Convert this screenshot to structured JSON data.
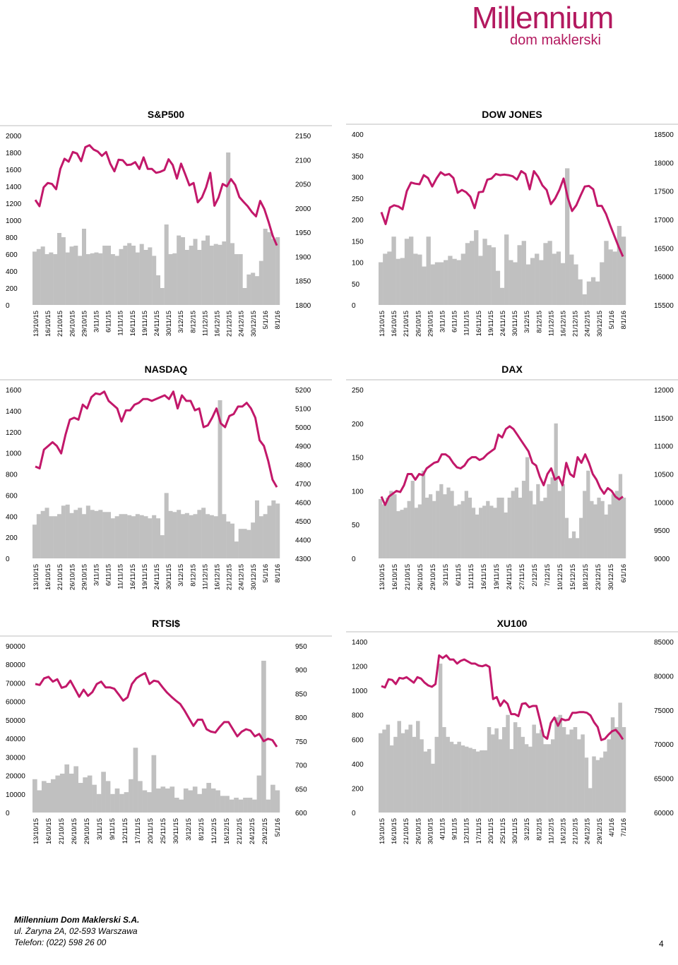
{
  "brand": {
    "name": "Millennium",
    "sub": "dom maklerski",
    "color": "#b3195f"
  },
  "colors": {
    "line": "#c2186a",
    "bar": "#c0c0c0",
    "grid": "#cfcfcf"
  },
  "charts": [
    {
      "id": "sp500",
      "title": "S&P500",
      "left_axis": {
        "ticks": [
          "2000",
          "1800",
          "1600",
          "1400",
          "1200",
          "1000",
          "800",
          "600",
          "400",
          "200",
          "0"
        ],
        "min": 0,
        "max": 2000
      },
      "right_axis": {
        "ticks": [
          "2150",
          "2100",
          "2050",
          "2000",
          "1950",
          "1900",
          "1850",
          "1800"
        ],
        "min": 1800,
        "max": 2150
      },
      "x_labels": [
        "13/10/15",
        "16/10/15",
        "21/10/15",
        "26/10/15",
        "29/10/15",
        "3/11/15",
        "6/11/15",
        "11/11/15",
        "16/11/15",
        "19/11/15",
        "24/11/15",
        "30/11/15",
        "3/12/15",
        "8/12/15",
        "11/12/15",
        "16/12/15",
        "21/12/15",
        "24/12/15",
        "30/12/15",
        "5/1/16",
        "8/1/16"
      ],
      "chart_data": {
        "type": "bar+line",
        "volume_axis": "left",
        "price_axis": "right",
        "bars": [
          630,
          660,
          690,
          600,
          620,
          600,
          850,
          800,
          620,
          690,
          700,
          580,
          900,
          600,
          610,
          620,
          610,
          700,
          700,
          600,
          580,
          660,
          700,
          730,
          700,
          620,
          720,
          650,
          680,
          580,
          350,
          200,
          950,
          600,
          610,
          820,
          800,
          650,
          700,
          780,
          650,
          760,
          820,
          700,
          720,
          710,
          750,
          1800,
          730,
          600,
          600,
          200,
          360,
          380,
          340,
          520,
          900,
          860,
          780,
          800
        ],
        "line": [
          2017,
          2004,
          2043,
          2052,
          2050,
          2039,
          2081,
          2102,
          2096,
          2116,
          2113,
          2097,
          2126,
          2130,
          2121,
          2117,
          2108,
          2116,
          2092,
          2076,
          2100,
          2099,
          2089,
          2090,
          2095,
          2081,
          2105,
          2081,
          2081,
          2073,
          2075,
          2079,
          2101,
          2089,
          2061,
          2092,
          2070,
          2047,
          2052,
          2012,
          2022,
          2043,
          2073,
          2005,
          2022,
          2050,
          2045,
          2060,
          2048,
          2023,
          2013,
          2004,
          1992,
          1983,
          2015,
          1998,
          1972,
          1943,
          1923
        ]
      }
    },
    {
      "id": "dowjones",
      "title": "DOW JONES",
      "left_axis": {
        "ticks": [
          "400",
          "350",
          "300",
          "250",
          "200",
          "150",
          "100",
          "50",
          "0"
        ],
        "min": 0,
        "max": 400
      },
      "right_axis": {
        "ticks": [
          "18500",
          "18000",
          "17500",
          "17000",
          "16500",
          "16000",
          "15500"
        ],
        "min": 15500,
        "max": 18500
      },
      "x_labels": [
        "13/10/15",
        "16/10/15",
        "21/10/15",
        "26/10/15",
        "29/10/15",
        "3/11/15",
        "6/11/15",
        "11/11/15",
        "16/11/15",
        "19/11/15",
        "24/11/15",
        "30/11/15",
        "3/12/15",
        "8/12/15",
        "11/12/15",
        "16/12/15",
        "21/12/15",
        "24/12/15",
        "30/12/15",
        "5/1/16",
        "8/1/16"
      ],
      "chart_data": {
        "type": "bar+line",
        "volume_axis": "left",
        "price_axis": "right",
        "bars": [
          100,
          120,
          125,
          160,
          108,
          110,
          155,
          160,
          120,
          118,
          90,
          160,
          95,
          100,
          100,
          105,
          115,
          108,
          105,
          120,
          145,
          150,
          175,
          115,
          155,
          140,
          135,
          80,
          40,
          165,
          105,
          100,
          140,
          150,
          95,
          110,
          120,
          105,
          145,
          150,
          120,
          125,
          98,
          320,
          118,
          95,
          60,
          25,
          55,
          65,
          55,
          100,
          150,
          130,
          125,
          185,
          160
        ],
        "line": [
          17130,
          16920,
          17210,
          17250,
          17230,
          17180,
          17500,
          17650,
          17630,
          17620,
          17780,
          17730,
          17580,
          17720,
          17830,
          17780,
          17800,
          17730,
          17470,
          17520,
          17480,
          17400,
          17200,
          17480,
          17490,
          17700,
          17720,
          17800,
          17780,
          17790,
          17780,
          17760,
          17700,
          17850,
          17800,
          17530,
          17850,
          17750,
          17600,
          17520,
          17270,
          17370,
          17520,
          17720,
          17380,
          17150,
          17250,
          17420,
          17580,
          17590,
          17530,
          17240,
          17240,
          17100,
          16900,
          16710,
          16520,
          16350
        ]
      }
    },
    {
      "id": "nasdaq",
      "title": "NASDAQ",
      "left_axis": {
        "ticks": [
          "1600",
          "1400",
          "1200",
          "1000",
          "800",
          "600",
          "400",
          "200",
          "0"
        ],
        "min": 0,
        "max": 1600
      },
      "right_axis": {
        "ticks": [
          "5200",
          "5100",
          "5000",
          "4900",
          "4800",
          "4700",
          "4600",
          "4500",
          "4400",
          "4300"
        ],
        "min": 4300,
        "max": 5200
      },
      "x_labels": [
        "13/10/15",
        "16/10/15",
        "21/10/15",
        "26/10/15",
        "29/10/15",
        "3/11/15",
        "6/11/15",
        "11/11/15",
        "16/11/15",
        "19/11/15",
        "24/11/15",
        "30/11/15",
        "3/12/15",
        "8/12/15",
        "11/12/15",
        "16/12/15",
        "21/12/15",
        "24/12/15",
        "30/12/15",
        "5/1/16",
        "8/1/16"
      ],
      "chart_data": {
        "type": "bar+line",
        "volume_axis": "left",
        "price_axis": "right",
        "bars": [
          320,
          420,
          450,
          480,
          400,
          400,
          420,
          500,
          510,
          430,
          460,
          480,
          420,
          500,
          460,
          450,
          460,
          440,
          440,
          380,
          400,
          420,
          420,
          410,
          400,
          420,
          410,
          400,
          380,
          410,
          380,
          220,
          620,
          450,
          440,
          460,
          420,
          430,
          410,
          420,
          460,
          480,
          420,
          410,
          400,
          1500,
          420,
          350,
          330,
          160,
          280,
          280,
          270,
          340,
          550,
          400,
          420,
          500,
          550,
          520
        ],
        "line": [
          4790,
          4780,
          4880,
          4900,
          4920,
          4900,
          4860,
          4960,
          5040,
          5050,
          5040,
          5120,
          5100,
          5160,
          5180,
          5175,
          5190,
          5140,
          5120,
          5100,
          5030,
          5090,
          5090,
          5120,
          5130,
          5150,
          5150,
          5140,
          5150,
          5160,
          5170,
          5150,
          5190,
          5100,
          5170,
          5140,
          5140,
          5090,
          5100,
          5000,
          5010,
          5050,
          5100,
          5020,
          5000,
          5060,
          5070,
          5110,
          5110,
          5130,
          5100,
          5050,
          4930,
          4900,
          4820,
          4720,
          4680
        ]
      }
    },
    {
      "id": "dax",
      "title": "DAX",
      "left_axis": {
        "ticks": [
          "250",
          "200",
          "150",
          "100",
          "50",
          "0"
        ],
        "min": 0,
        "max": 250
      },
      "right_axis": {
        "ticks": [
          "12000",
          "11500",
          "11000",
          "10500",
          "10000",
          "9500",
          "9000"
        ],
        "min": 9000,
        "max": 12000
      },
      "x_labels": [
        "13/10/15",
        "16/10/15",
        "21/10/15",
        "26/10/15",
        "29/10/15",
        "3/11/15",
        "6/11/15",
        "11/11/15",
        "16/11/15",
        "19/11/15",
        "24/11/15",
        "27/11/15",
        "2/12/15",
        "7/12/15",
        "10/12/15",
        "15/12/15",
        "18/12/15",
        "23/12/15",
        "30/12/15",
        "6/1/16"
      ],
      "chart_data": {
        "type": "bar+line",
        "volume_axis": "left",
        "price_axis": "right",
        "bars": [
          88,
          80,
          90,
          100,
          95,
          70,
          72,
          75,
          85,
          115,
          75,
          80,
          130,
          90,
          95,
          85,
          100,
          110,
          95,
          105,
          100,
          78,
          80,
          85,
          100,
          90,
          75,
          65,
          75,
          78,
          85,
          78,
          75,
          90,
          90,
          68,
          90,
          100,
          105,
          90,
          115,
          150,
          100,
          80,
          110,
          85,
          90,
          110,
          120,
          200,
          100,
          110,
          60,
          30,
          40,
          30,
          60,
          100,
          130,
          85,
          80,
          90,
          85,
          65,
          80,
          95,
          100,
          125,
          90
        ],
        "line": [
          10100,
          9950,
          10100,
          10150,
          10200,
          10180,
          10300,
          10500,
          10500,
          10400,
          10500,
          10480,
          10600,
          10650,
          10700,
          10720,
          10850,
          10850,
          10800,
          10700,
          10620,
          10600,
          10650,
          10750,
          10800,
          10800,
          10750,
          10780,
          10850,
          10900,
          10950,
          11200,
          11150,
          11300,
          11350,
          11300,
          11200,
          11100,
          11000,
          10900,
          10700,
          10650,
          10450,
          10300,
          10500,
          10600,
          10400,
          10450,
          10300,
          10700,
          10500,
          10450,
          10800,
          10700,
          10850,
          10700,
          10500,
          10400,
          10250,
          10150,
          10250,
          10200,
          10100,
          10050,
          10100
        ]
      }
    },
    {
      "id": "rtsi",
      "title": "RTSI$",
      "left_axis": {
        "ticks": [
          "90000",
          "80000",
          "70000",
          "60000",
          "50000",
          "40000",
          "30000",
          "20000",
          "10000",
          "0"
        ],
        "min": 0,
        "max": 90000
      },
      "right_axis": {
        "ticks": [
          "950",
          "900",
          "850",
          "800",
          "750",
          "700",
          "650",
          "600"
        ],
        "min": 600,
        "max": 950
      },
      "x_labels": [
        "13/10/15",
        "16/10/15",
        "21/10/15",
        "26/10/15",
        "29/10/15",
        "3/11/15",
        "9/11/15",
        "12/11/15",
        "17/11/15",
        "20/11/15",
        "25/11/15",
        "30/11/15",
        "3/12/15",
        "8/12/15",
        "11/12/15",
        "16/12/15",
        "21/12/15",
        "24/12/15",
        "29/12/15",
        "5/1/16"
      ],
      "chart_data": {
        "type": "bar+line",
        "volume_axis": "left",
        "price_axis": "right",
        "bars": [
          18000,
          12000,
          17000,
          16000,
          18000,
          20000,
          21000,
          26000,
          21000,
          25000,
          16000,
          19000,
          20000,
          15000,
          10000,
          22000,
          17000,
          10000,
          13000,
          10000,
          11000,
          18000,
          35000,
          17000,
          12000,
          11000,
          31000,
          13000,
          14000,
          13000,
          14000,
          8000,
          7000,
          13000,
          12000,
          14000,
          10000,
          13000,
          16000,
          13000,
          12000,
          9000,
          9000,
          7000,
          8000,
          7000,
          8000,
          8000,
          7000,
          20000,
          82000,
          7000,
          15000,
          12000
        ],
        "line": [
          870,
          868,
          882,
          885,
          875,
          880,
          862,
          865,
          877,
          860,
          843,
          858,
          845,
          853,
          870,
          875,
          863,
          863,
          860,
          848,
          835,
          842,
          870,
          882,
          888,
          893,
          870,
          877,
          875,
          863,
          852,
          843,
          835,
          828,
          814,
          798,
          782,
          795,
          795,
          775,
          770,
          768,
          780,
          790,
          790,
          775,
          760,
          770,
          775,
          772,
          760,
          765,
          750,
          755,
          752,
          738
        ]
      }
    },
    {
      "id": "xu100",
      "title": "XU100",
      "left_axis": {
        "ticks": [
          "1400",
          "1200",
          "1000",
          "800",
          "600",
          "400",
          "200",
          "0"
        ],
        "min": 0,
        "max": 1400
      },
      "right_axis": {
        "ticks": [
          "85000",
          "80000",
          "75000",
          "70000",
          "65000",
          "60000"
        ],
        "min": 60000,
        "max": 85000
      },
      "x_labels": [
        "13/10/15",
        "16/10/15",
        "21/10/15",
        "26/10/15",
        "30/10/15",
        "4/11/15",
        "9/11/15",
        "12/11/15",
        "17/11/15",
        "20/11/15",
        "25/11/15",
        "30/11/15",
        "3/12/15",
        "8/12/15",
        "11/12/15",
        "16/12/15",
        "21/12/15",
        "24/12/15",
        "29/12/15",
        "4/1/16",
        "7/1/16"
      ],
      "chart_data": {
        "type": "bar+line",
        "volume_axis": "left",
        "price_axis": "right",
        "bars": [
          650,
          680,
          720,
          550,
          620,
          750,
          650,
          680,
          720,
          620,
          750,
          600,
          500,
          520,
          400,
          620,
          1220,
          700,
          620,
          580,
          560,
          580,
          550,
          540,
          530,
          520,
          500,
          510,
          510,
          700,
          640,
          690,
          600,
          700,
          800,
          520,
          740,
          700,
          620,
          560,
          540,
          720,
          650,
          680,
          560,
          560,
          600,
          780,
          800,
          700,
          640,
          680,
          700,
          600,
          640,
          450,
          200,
          460,
          430,
          450,
          500,
          600,
          780,
          700,
          900,
          700
        ],
        "line": [
          78500,
          78300,
          79500,
          79400,
          78800,
          79700,
          79600,
          79800,
          79400,
          79000,
          79800,
          79600,
          79000,
          78600,
          78400,
          78800,
          83000,
          82600,
          83000,
          82400,
          82400,
          81800,
          82200,
          82400,
          82100,
          81800,
          81800,
          81500,
          81400,
          81600,
          81300,
          76600,
          76900,
          75600,
          76400,
          75900,
          74400,
          74400,
          74100,
          75900,
          76000,
          75400,
          75600,
          75600,
          73500,
          71200,
          70800,
          73100,
          73900,
          72700,
          73700,
          73500,
          73600,
          74600,
          74600,
          74700,
          74700,
          74600,
          74200,
          73200,
          72500,
          70600,
          70800,
          71400,
          71900,
          72100,
          71500,
          70700
        ]
      }
    }
  ],
  "footer": {
    "company": "Millennium Dom Maklerski S.A.",
    "address": "ul. Żaryna 2A, 02-593 Warszawa",
    "phone": "Telefon: (022) 598 26 00",
    "page": "4"
  }
}
